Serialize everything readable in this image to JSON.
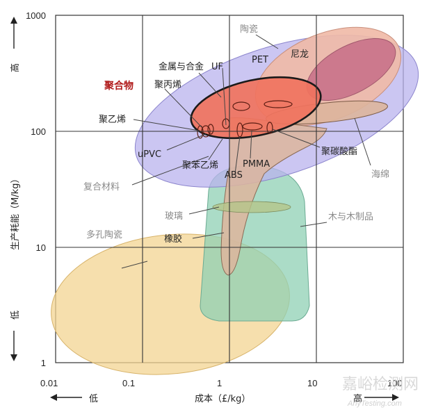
{
  "axes": {
    "x_ticks": [
      "0.01",
      "0.1",
      "1",
      "10",
      "100"
    ],
    "y_ticks": [
      "1",
      "10",
      "100",
      "1000"
    ],
    "x_title": "成本（£/kg）",
    "y_title": "生产耗能（M/kg）",
    "x_low": "低",
    "x_high": "高",
    "y_low": "低",
    "y_high": "高"
  },
  "labels": {
    "taoci": "陶瓷",
    "nilong": "尼龙",
    "pet": "PET",
    "jinshu": "金属与合金",
    "uf": "UF",
    "juhewu": "聚合物",
    "jubingxi": "聚丙烯",
    "juyixi": "聚乙烯",
    "upvc": "uPVC",
    "jubenyixi": "聚苯乙烯",
    "abs": "ABS",
    "pmma": "PMMA",
    "jutansuanzhi": "聚碳酸酯",
    "haimian": "海绵",
    "fuhe": "复合材料",
    "boli": "玻璃",
    "mu": "木与木制品",
    "duokong": "多孔陶瓷",
    "xiangjiao": "橡胶"
  },
  "watermark": {
    "cn": "嘉峪检测网",
    "en": "AnyTesting.com"
  },
  "colors": {
    "ceramic": "#f0b9a6",
    "composite": "#b9b3ee",
    "metal_inner": "#c9728a",
    "polymer": "#f0735e",
    "rubber": "#ddb59c",
    "glass": "#8fd0b4",
    "porous": "#f3d492",
    "grid": "#333333"
  }
}
